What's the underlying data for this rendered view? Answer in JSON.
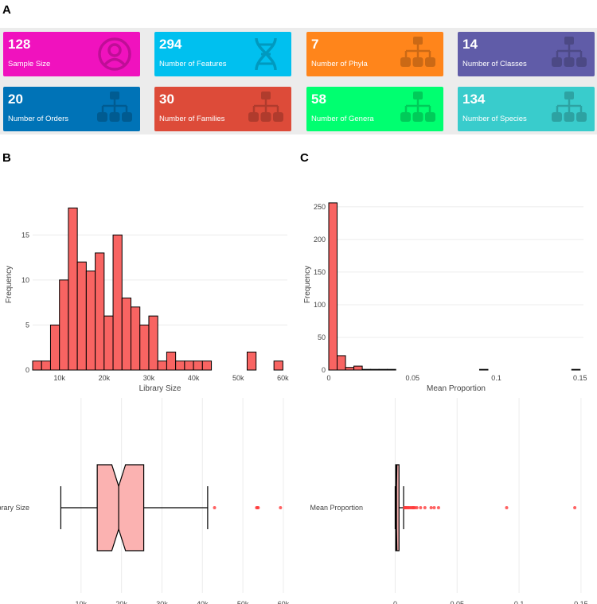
{
  "panels": {
    "a": "A",
    "b": "B",
    "c": "C"
  },
  "colors": {
    "bar_fill": "#f86462",
    "box_fill": "#fbb2b1",
    "outlier": "#ff3b3b"
  },
  "tiles": [
    {
      "value": "128",
      "label": "Sample Size",
      "color": "#f012be",
      "icon": "user-icon"
    },
    {
      "value": "294",
      "label": "Number of Features",
      "color": "#00c0ef",
      "icon": "dna-icon"
    },
    {
      "value": "7",
      "label": "Number of Phyla",
      "color": "#ff851b",
      "icon": "sitemap-icon"
    },
    {
      "value": "14",
      "label": "Number of Classes",
      "color": "#605ca8",
      "icon": "sitemap-icon"
    },
    {
      "value": "20",
      "label": "Number of Orders",
      "color": "#0073b7",
      "icon": "sitemap-icon"
    },
    {
      "value": "30",
      "label": "Number of Families",
      "color": "#dd4b39",
      "icon": "sitemap-icon"
    },
    {
      "value": "58",
      "label": "Number of Genera",
      "color": "#00ff70",
      "icon": "sitemap-icon"
    },
    {
      "value": "134",
      "label": "Number of Species",
      "color": "#39cccc",
      "icon": "sitemap-icon"
    }
  ],
  "chart_data": [
    {
      "type": "bar",
      "name": "library-size-histogram",
      "xlabel": "Library Size",
      "ylabel": "Frequency",
      "xlim": [
        4000,
        61000
      ],
      "ylim": [
        0,
        19
      ],
      "xticks": [
        {
          "v": 10000,
          "label": "10k"
        },
        {
          "v": 20000,
          "label": "20k"
        },
        {
          "v": 30000,
          "label": "30k"
        },
        {
          "v": 40000,
          "label": "40k"
        },
        {
          "v": 50000,
          "label": "50k"
        },
        {
          "v": 60000,
          "label": "60k"
        }
      ],
      "yticks": [
        {
          "v": 0,
          "label": "0"
        },
        {
          "v": 5,
          "label": "5"
        },
        {
          "v": 10,
          "label": "10"
        },
        {
          "v": 15,
          "label": "15"
        }
      ],
      "bin_start": 4000,
      "bin_width": 2000,
      "values": [
        1,
        1,
        5,
        10,
        18,
        12,
        11,
        13,
        6,
        15,
        8,
        7,
        5,
        6,
        1,
        2,
        1,
        1,
        1,
        1,
        0,
        0,
        0,
        0,
        2,
        0,
        0,
        1
      ]
    },
    {
      "type": "bar",
      "name": "mean-proportion-histogram",
      "xlabel": "Mean Proportion",
      "ylabel": "Frequency",
      "xlim": [
        0,
        0.152
      ],
      "ylim": [
        0,
        262
      ],
      "xticks": [
        {
          "v": 0,
          "label": "0"
        },
        {
          "v": 0.05,
          "label": "0.05"
        },
        {
          "v": 0.1,
          "label": "0.1"
        },
        {
          "v": 0.15,
          "label": "0.15"
        }
      ],
      "yticks": [
        {
          "v": 0,
          "label": "0"
        },
        {
          "v": 50,
          "label": "50"
        },
        {
          "v": 100,
          "label": "100"
        },
        {
          "v": 150,
          "label": "150"
        },
        {
          "v": 200,
          "label": "200"
        },
        {
          "v": 250,
          "label": "250"
        }
      ],
      "bin_start": 0,
      "bin_width": 0.005,
      "values": [
        256,
        22,
        4,
        6,
        1,
        1,
        1,
        1,
        0,
        0,
        0,
        0,
        0,
        0,
        0,
        0,
        0,
        0,
        1,
        0,
        0,
        0,
        0,
        0,
        0,
        0,
        0,
        0,
        0,
        1
      ]
    },
    {
      "type": "box",
      "name": "library-size-boxplot",
      "label": "Library Size",
      "xlim": [
        0,
        61000
      ],
      "xticks": [
        {
          "v": 10000,
          "label": "10k"
        },
        {
          "v": 20000,
          "label": "20k"
        },
        {
          "v": 30000,
          "label": "30k"
        },
        {
          "v": 40000,
          "label": "40k"
        },
        {
          "v": 50000,
          "label": "50k"
        },
        {
          "v": 60000,
          "label": "60k"
        }
      ],
      "min": 5000,
      "q1": 14000,
      "median": 19300,
      "q3": 25500,
      "max": 41300,
      "notch_low": 17600,
      "notch_high": 21000,
      "outliers": [
        43000,
        53400,
        53600,
        53800,
        59300
      ]
    },
    {
      "type": "box",
      "name": "mean-proportion-boxplot",
      "label": "Mean Proportion",
      "xlim": [
        -0.017,
        0.152
      ],
      "xticks": [
        {
          "v": 0,
          "label": "0"
        },
        {
          "v": 0.05,
          "label": "0.05"
        },
        {
          "v": 0.1,
          "label": "0.1"
        },
        {
          "v": 0.15,
          "label": "0.15"
        }
      ],
      "min": 0,
      "q1": 0.0004,
      "median": 0.0011,
      "q3": 0.0031,
      "max": 0.0068,
      "notch_low": 0.0009,
      "notch_high": 0.0014,
      "outliers": [
        0.0075,
        0.008,
        0.0085,
        0.009,
        0.0095,
        0.0105,
        0.011,
        0.012,
        0.013,
        0.014,
        0.0145,
        0.015,
        0.016,
        0.0175,
        0.0205,
        0.024,
        0.029,
        0.0315,
        0.035,
        0.09,
        0.145
      ]
    }
  ]
}
